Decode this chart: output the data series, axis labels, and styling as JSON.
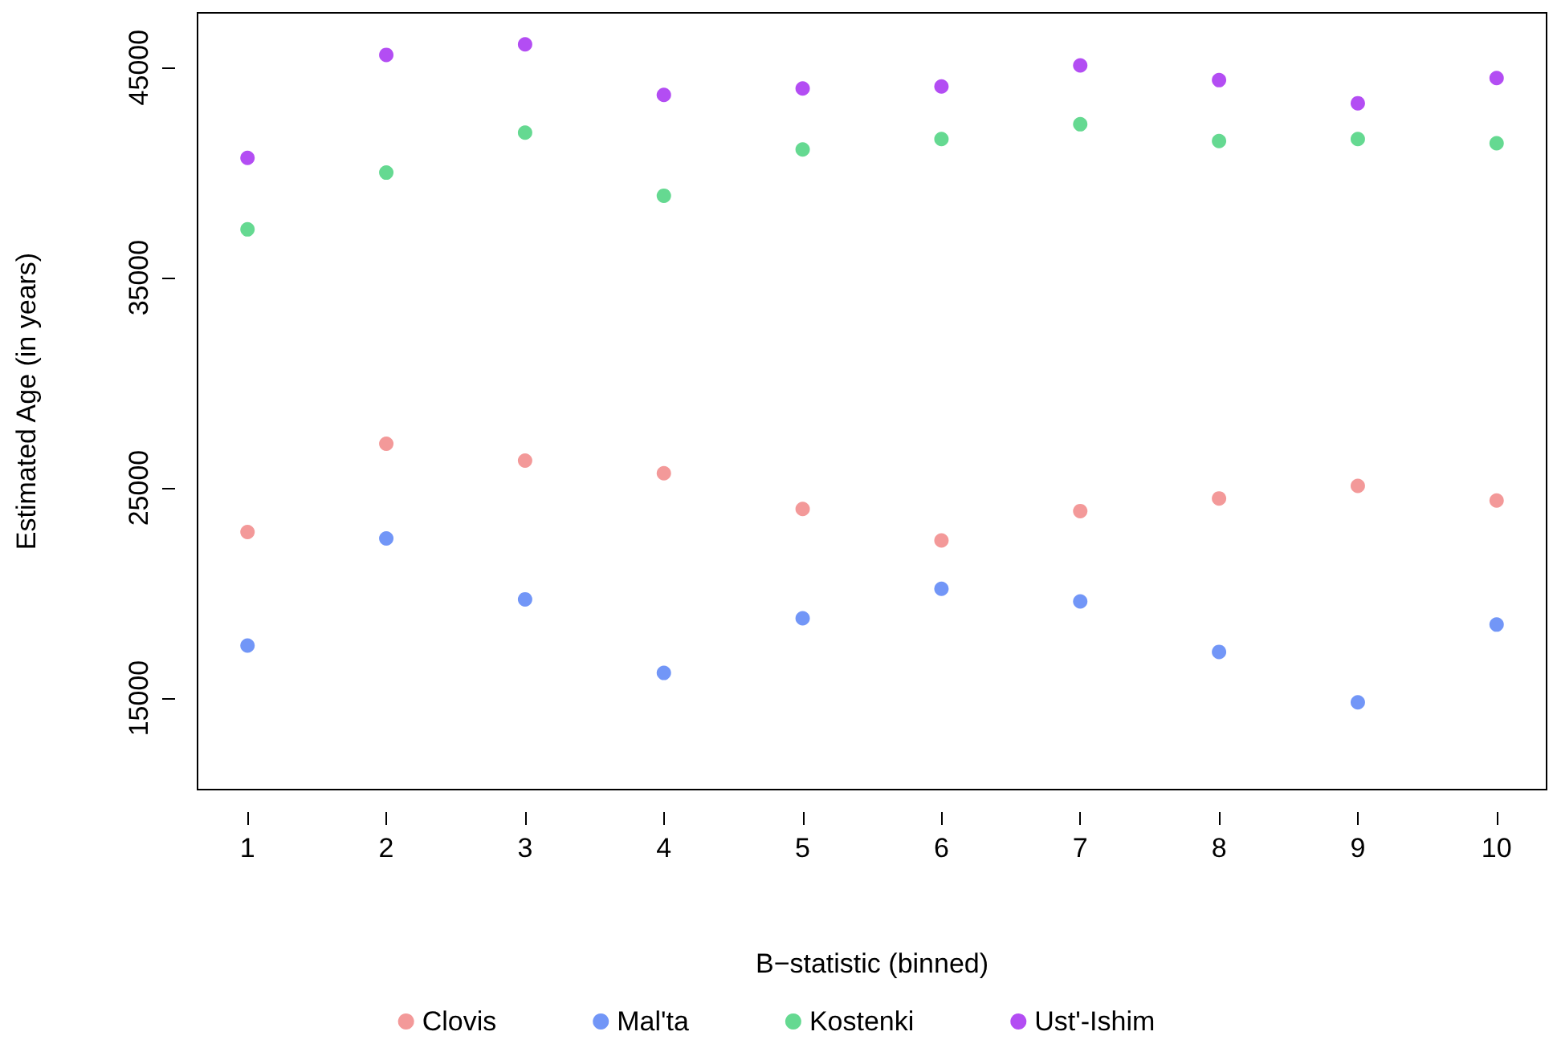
{
  "chart_data": {
    "type": "scatter",
    "xlabel": "B−statistic (binned)",
    "ylabel": "Estimated Age (in years)",
    "x": [
      1,
      2,
      3,
      4,
      5,
      6,
      7,
      8,
      9,
      10
    ],
    "series": [
      {
        "name": "Clovis",
        "color": "#f08080",
        "values": [
          22900,
          27100,
          26300,
          25700,
          24000,
          22500,
          23900,
          24500,
          25100,
          24400
        ]
      },
      {
        "name": "Mal'ta",
        "color": "#4f7cf5",
        "values": [
          17500,
          22600,
          19700,
          16200,
          18800,
          20200,
          19600,
          17200,
          14800,
          18500
        ]
      },
      {
        "name": "Kostenki",
        "color": "#3ecf76",
        "values": [
          37300,
          40000,
          41900,
          38900,
          41100,
          41600,
          42300,
          41500,
          41600,
          41400
        ]
      },
      {
        "name": "Ust'-Ishim",
        "color": "#a020f0",
        "values": [
          40700,
          45600,
          46100,
          43700,
          44000,
          44100,
          45100,
          44400,
          43300,
          44500
        ]
      }
    ],
    "xlim": [
      0.64,
      10.36
    ],
    "xticks": [
      1,
      2,
      3,
      4,
      5,
      6,
      7,
      8,
      9,
      10
    ],
    "ylim": [
      10650,
      47600
    ],
    "yticks": [
      15000,
      25000,
      35000,
      45000
    ],
    "grid": false,
    "legend": "bottom",
    "marker": "circle"
  }
}
